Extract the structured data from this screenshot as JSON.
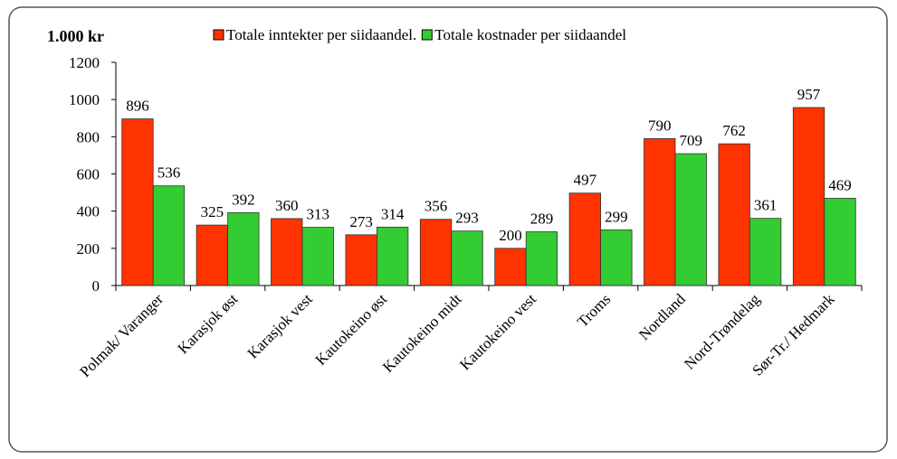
{
  "chart_data": {
    "type": "bar",
    "y_label": "1.000 kr",
    "categories": [
      "Polmak/ Varanger",
      "Karasjok øst",
      "Karasjok vest",
      "Kautokeino øst",
      "Kautokeino midt",
      "Kautokeino vest",
      "Troms",
      "Nordland",
      "Nord-Trøndelag",
      "Sør-Tr./ Hedmark"
    ],
    "series": [
      {
        "name": "Totale inntekter per siidaandel.",
        "color": "#ff3300",
        "values": [
          896,
          325,
          360,
          273,
          356,
          200,
          497,
          790,
          762,
          957
        ]
      },
      {
        "name": "Totale kostnader per siidaandel",
        "color": "#33cc33",
        "values": [
          536,
          392,
          313,
          314,
          293,
          289,
          299,
          709,
          361,
          469
        ]
      }
    ],
    "ylim": [
      0,
      1200
    ],
    "yticks": [
      0,
      200,
      400,
      600,
      800,
      1000,
      1200
    ],
    "grid": false,
    "legend": "top"
  }
}
